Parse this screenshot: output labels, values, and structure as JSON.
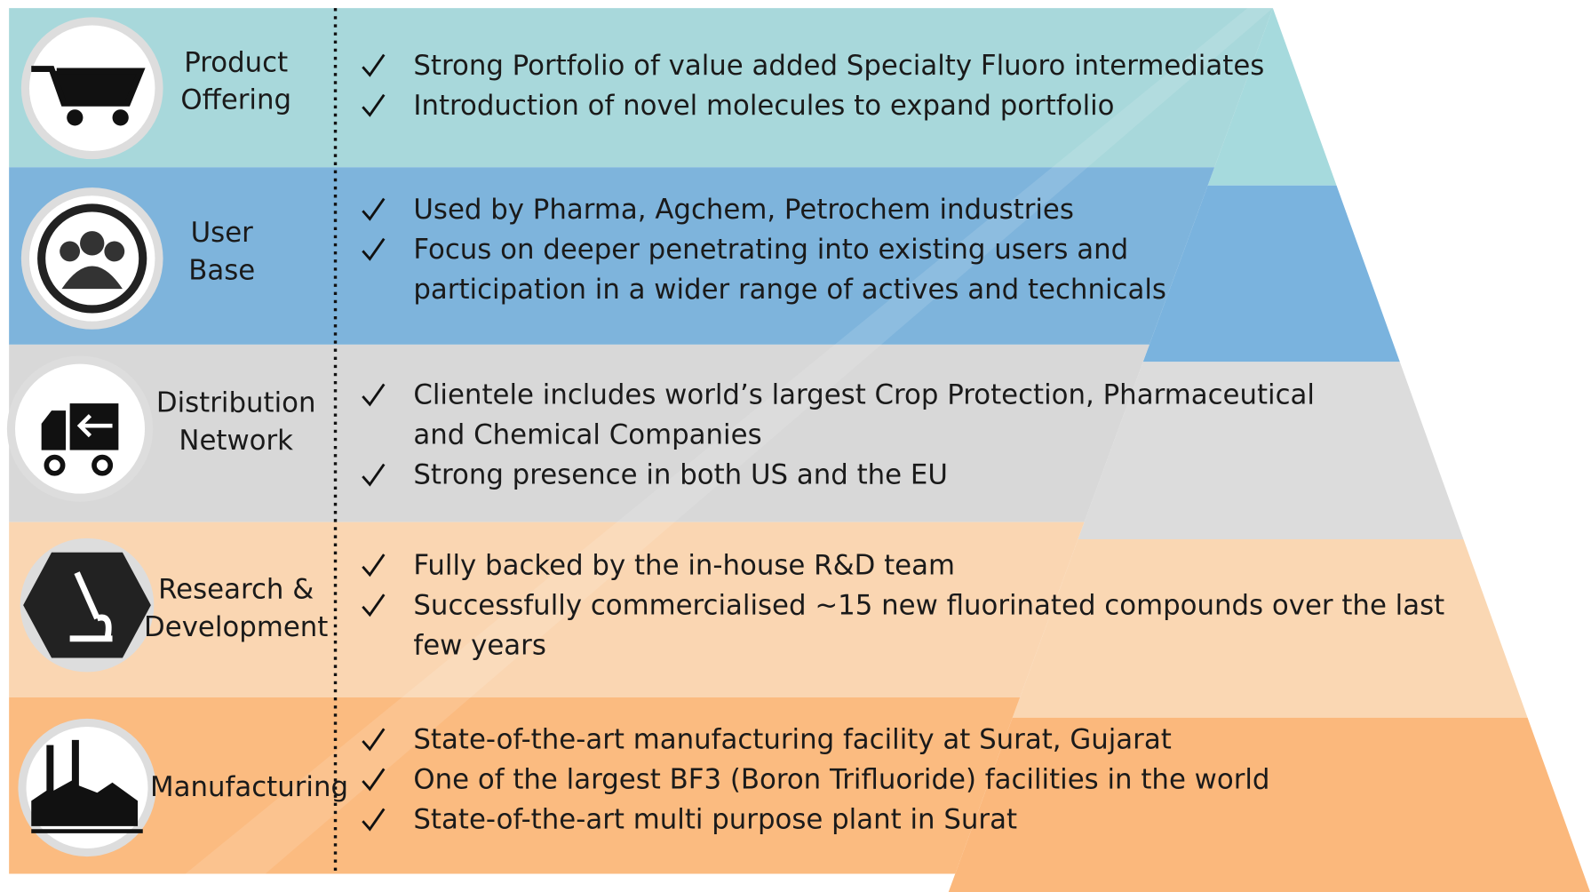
{
  "rows": [
    {
      "label": [
        "Product",
        "Offering"
      ],
      "bullets": [
        [
          "Strong Portfolio of value added Specialty Fluoro intermediates"
        ],
        [
          "Introduction of novel molecules to expand portfolio"
        ]
      ]
    },
    {
      "label": [
        "User",
        "Base"
      ],
      "bullets": [
        [
          "Used by Pharma, Agchem, Petrochem industries"
        ],
        [
          "Focus on deeper penetrating into existing users and",
          "participation in a wider range of actives and technicals"
        ]
      ]
    },
    {
      "label": [
        "Distribution",
        "Network"
      ],
      "bullets": [
        [
          "Clientele includes world’s largest Crop Protection, Pharmaceutical",
          "and  Chemical Companies"
        ],
        [
          "Strong presence in both US and the EU"
        ]
      ]
    },
    {
      "label": [
        "Research &",
        "Development"
      ],
      "bullets": [
        [
          "Fully backed by the in-house R&D team"
        ],
        [
          "Successfully commercialised ~15 new fluorinated compounds over the last",
          "few years"
        ]
      ]
    },
    {
      "label": [
        "Manufacturing"
      ],
      "bullets": [
        [
          "State-of-the-art manufacturing facility at Surat, Gujarat"
        ],
        [
          "One of the largest BF3 (Boron Trifluoride) facilities in the world"
        ],
        [
          "State-of-the-art multi purpose plant in Surat"
        ]
      ]
    }
  ]
}
